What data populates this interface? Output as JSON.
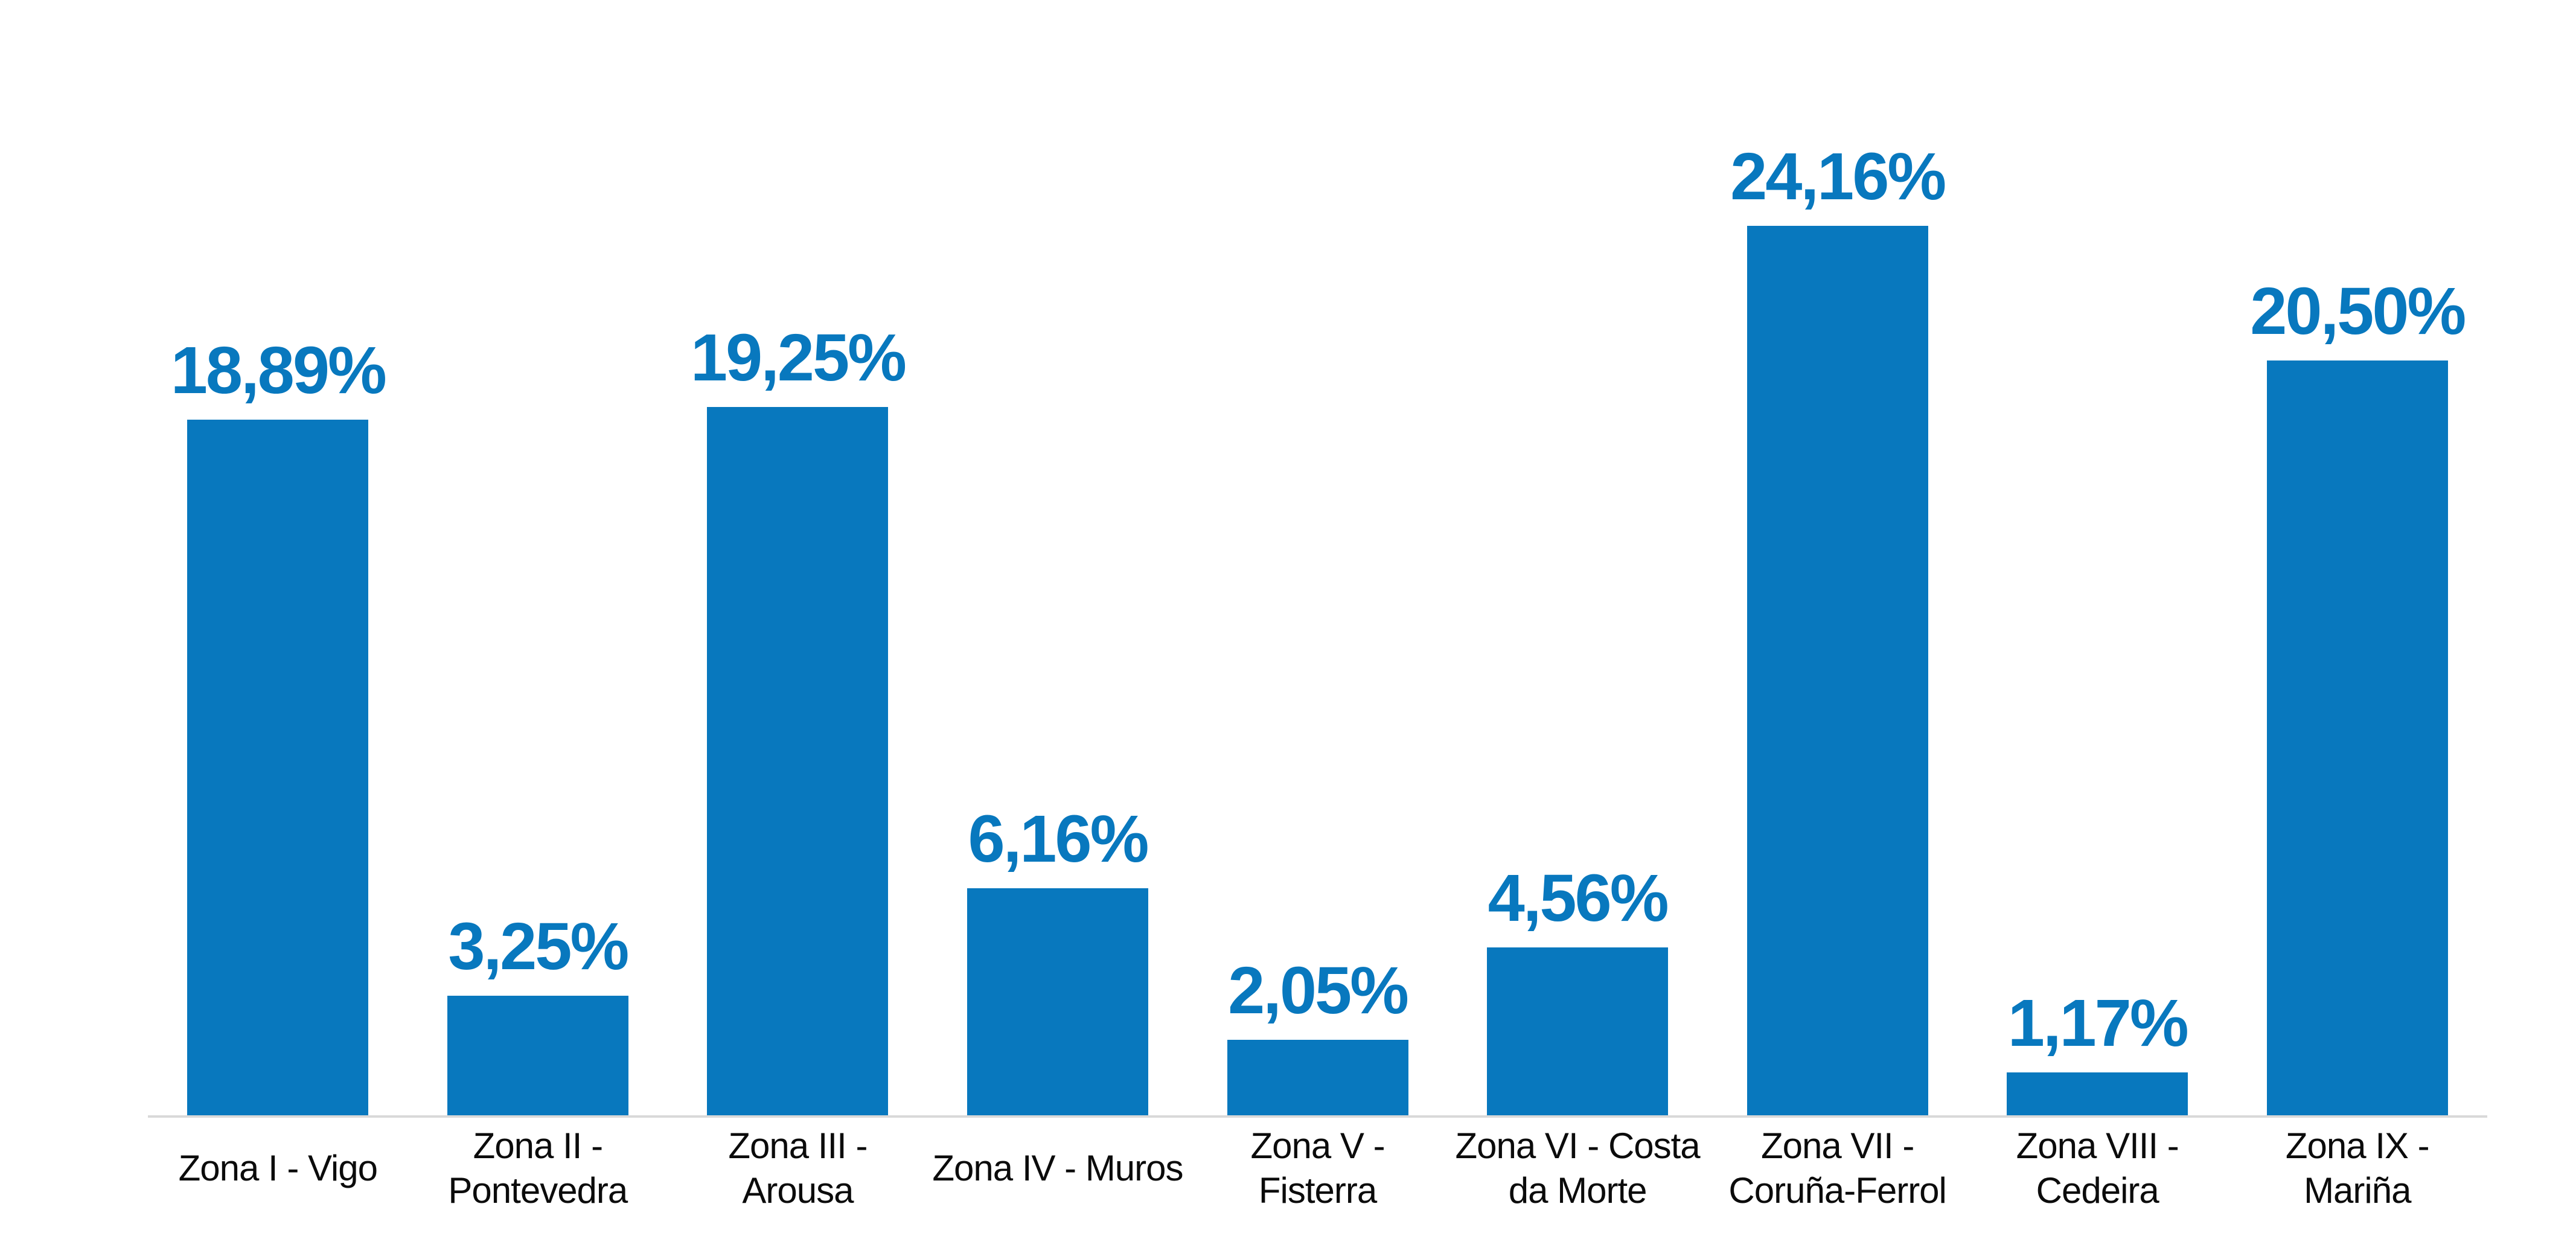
{
  "chart_data": {
    "type": "bar",
    "title": "",
    "xlabel": "",
    "ylabel": "",
    "categories": [
      "Zona I - Vigo",
      "Zona II - Pontevedra",
      "Zona III - Arousa",
      "Zona IV - Muros",
      "Zona V - Fisterra",
      "Zona VI - Costa da Morte",
      "Zona VII - Coruña-Ferrol",
      "Zona VIII - Cedeira",
      "Zona IX - Mariña"
    ],
    "category_lines": [
      [
        "Zona I - Vigo"
      ],
      [
        "Zona II -",
        "Pontevedra"
      ],
      [
        "Zona III -",
        "Arousa"
      ],
      [
        "Zona IV - Muros"
      ],
      [
        "Zona V -",
        "Fisterra"
      ],
      [
        "Zona VI - Costa",
        "da Morte"
      ],
      [
        "Zona VII -",
        "Coruña-Ferrol"
      ],
      [
        "Zona VIII -",
        "Cedeira"
      ],
      [
        "Zona IX -",
        "Mariña"
      ]
    ],
    "values": [
      18.89,
      3.25,
      19.25,
      6.16,
      2.05,
      4.56,
      24.16,
      1.17,
      20.5
    ],
    "value_labels": [
      "18,89%",
      "3,25%",
      "19,25%",
      "6,16%",
      "2,05%",
      "4,56%",
      "24,16%",
      "1,17%",
      "20,50%"
    ],
    "ylim": [
      0,
      25.4
    ],
    "grid": false,
    "legend": "none",
    "y_axis_visible": false,
    "bar_color": "#0878be",
    "value_label_color": "#0878be",
    "category_label_color": "#0b0b0b",
    "axis_line_color": "#d9d9d9",
    "background_color": "#ffffff"
  }
}
